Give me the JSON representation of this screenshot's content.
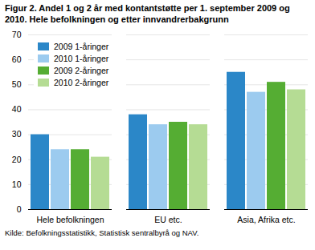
{
  "chart_data": {
    "type": "bar",
    "title": "Figur 2. Andel 1 og 2 år med kontantstøtte per 1. september 2009 og 2010. Hele befolkningen og etter innvandrerbakgrunn",
    "source": "Kilde: Befolkningsstatistikk, Statistisk sentralbyrå og NAV.",
    "categories": [
      "Hele befolkningen",
      "EU etc.",
      "Asia, Afrika etc."
    ],
    "series": [
      {
        "name": "2009 1-åringer",
        "color": "#2b87c8",
        "values": [
          30,
          38,
          55
        ]
      },
      {
        "name": "2010 1-åringer",
        "color": "#9ccbef",
        "values": [
          24,
          34,
          47
        ]
      },
      {
        "name": "2009 2-åringer",
        "color": "#55ad33",
        "values": [
          24,
          35,
          51
        ]
      },
      {
        "name": "2010 2-åringer",
        "color": "#b5dc94",
        "values": [
          21,
          34,
          48
        ]
      }
    ],
    "ylim": [
      0,
      70
    ],
    "yticks": [
      0,
      10,
      20,
      30,
      40,
      50,
      60,
      70
    ],
    "grid": true,
    "legend": "top-left"
  }
}
